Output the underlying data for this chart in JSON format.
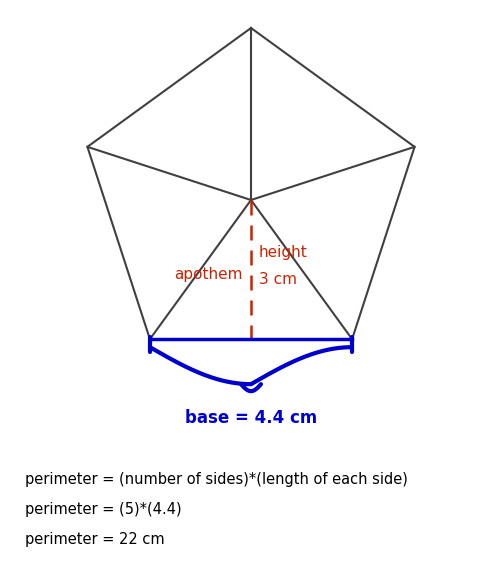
{
  "pentagon_color": "#404040",
  "pentagon_linewidth": 1.5,
  "apothem_color": "#cc2200",
  "apothem_text": "apothem",
  "height_label": "height",
  "height_value": "3 cm",
  "base_text": "base = 4.4 cm",
  "base_color": "#0000cc",
  "line1": "perimeter = (number of sides)*(length of each side)",
  "line2": "perimeter = (5)*(4.4)",
  "line3": "perimeter = 22 cm",
  "text_color": "#000000",
  "background": "#ffffff",
  "fig_width": 5.02,
  "fig_height": 5.84,
  "dpi": 100
}
